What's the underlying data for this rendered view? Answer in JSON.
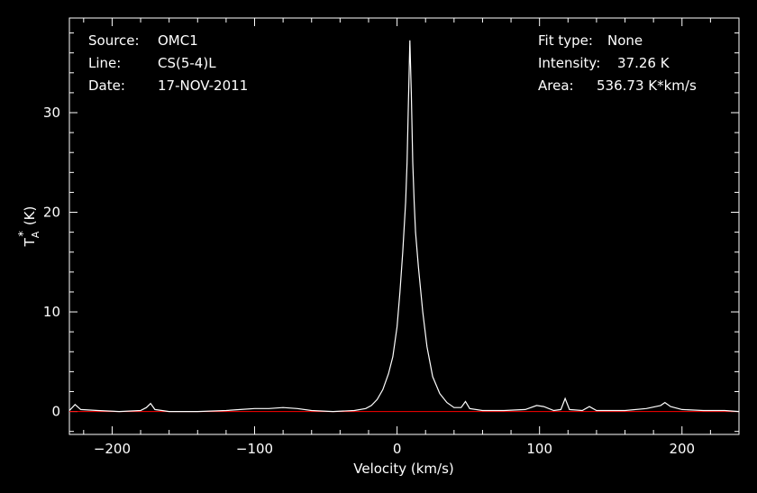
{
  "header": {
    "source_label": "Source:",
    "source_value": "OMC1",
    "line_label": "Line:",
    "line_value": "CS(5-4)L",
    "date_label": "Date:",
    "date_value": "17-NOV-2011",
    "fit_label": "Fit type:",
    "fit_value": "None",
    "intensity_label": "Intensity:",
    "intensity_value": "37.26 K",
    "area_label": "Area:",
    "area_value": "536.73 K*km/s"
  },
  "colors": {
    "background": "#000000",
    "axes": "#ffffff",
    "spectrum": "#ffffff",
    "baseline": "#ff0000"
  },
  "chart_data": {
    "type": "line",
    "xlabel": "Velocity (km/s)",
    "ylabel_main": "T",
    "ylabel_sub": "A",
    "ylabel_sup": "*",
    "ylabel_unit": "(K)",
    "xlim": [
      -230,
      240
    ],
    "ylim": [
      -2.3,
      39.5
    ],
    "xticks": [
      -200,
      -100,
      0,
      100,
      200
    ],
    "xtick_labels": [
      "−200",
      "−100",
      "0",
      "100",
      "200"
    ],
    "yticks": [
      0,
      10,
      20,
      30
    ],
    "ytick_labels": [
      "0",
      "10",
      "20",
      "30"
    ],
    "baseline_y": 0,
    "series": [
      {
        "points": [
          [
            -230,
            0.1
          ],
          [
            -226,
            0.7
          ],
          [
            -222,
            0.2
          ],
          [
            -210,
            0.1
          ],
          [
            -195,
            0.0
          ],
          [
            -180,
            0.1
          ],
          [
            -176,
            0.4
          ],
          [
            -173,
            0.8
          ],
          [
            -170,
            0.2
          ],
          [
            -160,
            0.0
          ],
          [
            -140,
            0.0
          ],
          [
            -120,
            0.1
          ],
          [
            -110,
            0.2
          ],
          [
            -100,
            0.3
          ],
          [
            -90,
            0.3
          ],
          [
            -80,
            0.4
          ],
          [
            -70,
            0.3
          ],
          [
            -60,
            0.1
          ],
          [
            -45,
            0.0
          ],
          [
            -30,
            0.1
          ],
          [
            -22,
            0.3
          ],
          [
            -18,
            0.6
          ],
          [
            -14,
            1.2
          ],
          [
            -10,
            2.2
          ],
          [
            -6,
            3.8
          ],
          [
            -3,
            5.5
          ],
          [
            0,
            8.5
          ],
          [
            2,
            12.0
          ],
          [
            4,
            16.0
          ],
          [
            5,
            18.5
          ],
          [
            6,
            21.0
          ],
          [
            7,
            25.0
          ],
          [
            8,
            31.0
          ],
          [
            9,
            37.26
          ],
          [
            10,
            32.0
          ],
          [
            11,
            25.0
          ],
          [
            12,
            21.0
          ],
          [
            13,
            18.0
          ],
          [
            15,
            14.5
          ],
          [
            18,
            10.0
          ],
          [
            21,
            6.5
          ],
          [
            25,
            3.5
          ],
          [
            30,
            1.8
          ],
          [
            35,
            0.9
          ],
          [
            40,
            0.4
          ],
          [
            45,
            0.4
          ],
          [
            48,
            1.0
          ],
          [
            51,
            0.3
          ],
          [
            60,
            0.1
          ],
          [
            75,
            0.1
          ],
          [
            90,
            0.2
          ],
          [
            98,
            0.6
          ],
          [
            103,
            0.5
          ],
          [
            110,
            0.1
          ],
          [
            115,
            0.2
          ],
          [
            118,
            1.3
          ],
          [
            121,
            0.2
          ],
          [
            130,
            0.1
          ],
          [
            135,
            0.5
          ],
          [
            140,
            0.1
          ],
          [
            160,
            0.1
          ],
          [
            175,
            0.3
          ],
          [
            185,
            0.6
          ],
          [
            188,
            0.9
          ],
          [
            192,
            0.5
          ],
          [
            200,
            0.2
          ],
          [
            215,
            0.1
          ],
          [
            230,
            0.1
          ],
          [
            240,
            0.0
          ]
        ]
      }
    ]
  }
}
